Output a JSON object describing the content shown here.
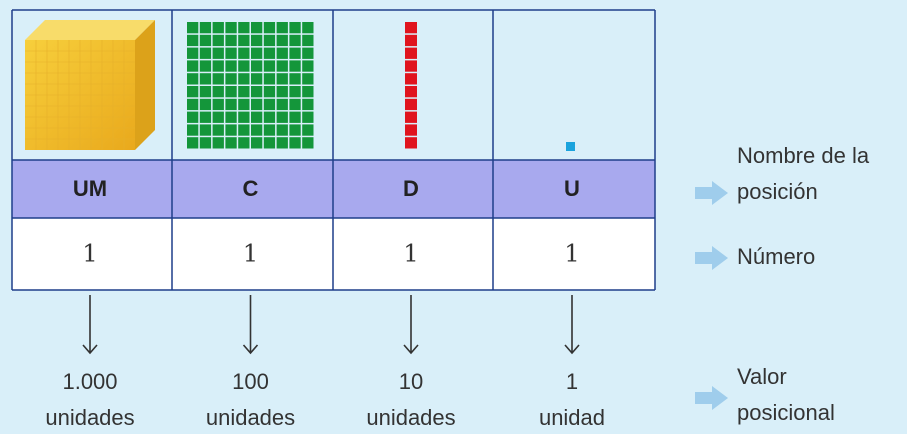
{
  "table": {
    "headers": [
      "UM",
      "C",
      "D",
      "U"
    ],
    "numbers": [
      "1",
      "1",
      "1",
      "1"
    ]
  },
  "values": [
    {
      "number": "1.000",
      "unit": "unidades"
    },
    {
      "number": "100",
      "unit": "unidades"
    },
    {
      "number": "10",
      "unit": "unidades"
    },
    {
      "number": "1",
      "unit": "unidad"
    }
  ],
  "legend": {
    "position_name": [
      "Nombre de la",
      "posición"
    ],
    "number": "Número",
    "place_value": [
      "Valor",
      "posicional"
    ]
  }
}
